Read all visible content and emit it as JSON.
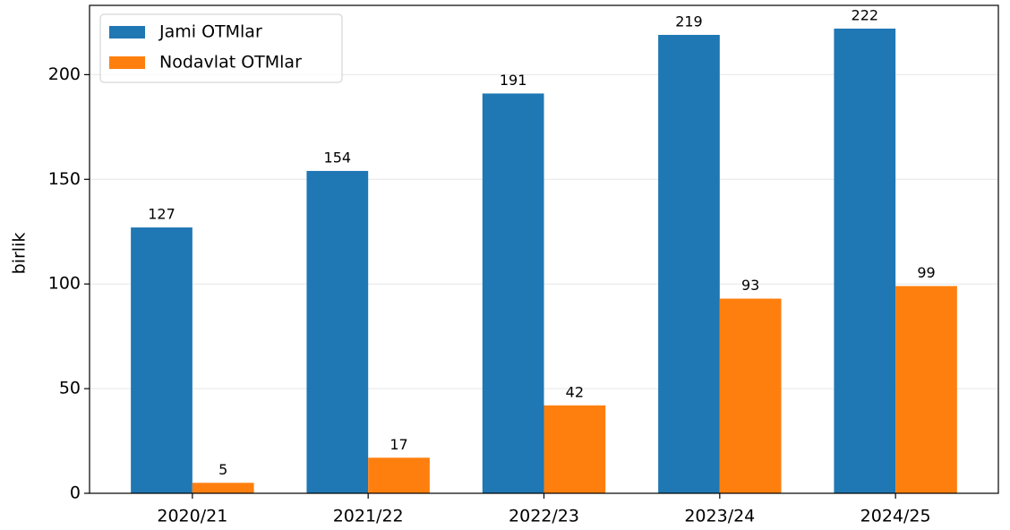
{
  "chart_data": {
    "type": "bar",
    "ylabel": "birlik",
    "categories": [
      "2020/21",
      "2021/22",
      "2022/23",
      "2023/24",
      "2024/25"
    ],
    "series": [
      {
        "name": "Jami OTMlar",
        "color": "#1f77b4",
        "values": [
          127,
          154,
          191,
          219,
          222
        ]
      },
      {
        "name": "Nodavlat OTMlar",
        "color": "#ff7f0e",
        "values": [
          5,
          17,
          42,
          93,
          99
        ]
      }
    ],
    "ylim": [
      0,
      233.1
    ],
    "yticks": [
      0,
      50,
      100,
      150,
      200
    ],
    "grid": true,
    "legend": "upper left"
  }
}
